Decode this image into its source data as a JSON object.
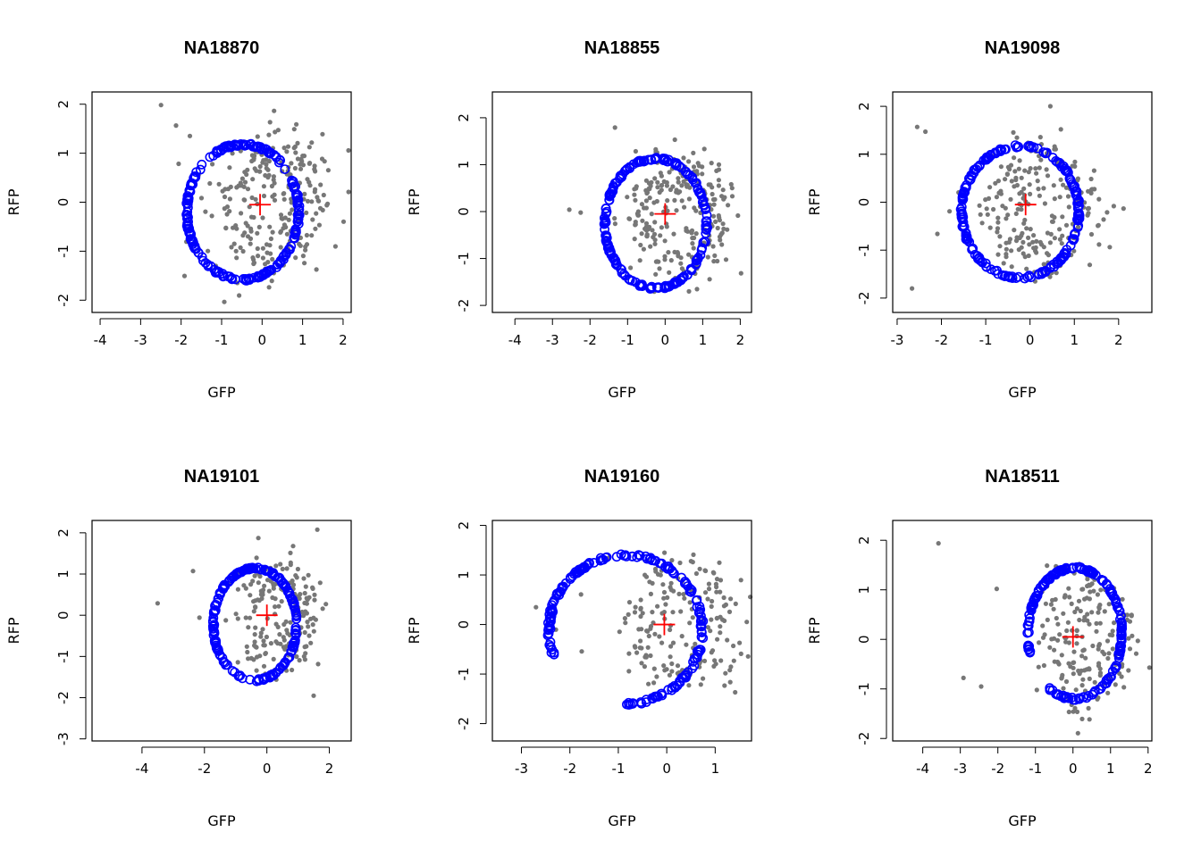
{
  "figure": {
    "panel_titles": [
      "NA18870",
      "NA18855",
      "NA19098",
      "NA19101",
      "NA19160",
      "NA18511"
    ],
    "xlabel": "GFP",
    "ylabel": "RFP"
  },
  "colors": {
    "points": "#777777",
    "fit_circles": "#0000ff",
    "center_cross": "#ff0000",
    "axes": "#000000"
  },
  "chart_data": [
    {
      "type": "scatter",
      "title": "NA18870",
      "xlabel": "GFP",
      "ylabel": "RFP",
      "xlim": [
        -4.2,
        2.2
      ],
      "ylim": [
        -2.25,
        2.25
      ],
      "xticks": [
        -4,
        -3,
        -2,
        -1,
        0,
        1,
        2
      ],
      "yticks": [
        -2,
        -1,
        0,
        1,
        2
      ],
      "center": [
        -0.05,
        -0.05
      ],
      "fit_ellipse": {
        "cx": -0.48,
        "cy": -0.2,
        "rx": 1.38,
        "ry": 1.38,
        "arc_from_deg": 0,
        "arc_to_deg": 360
      },
      "n_circles": 220,
      "n_points": 260,
      "seed": 11
    },
    {
      "type": "scatter",
      "title": "NA18855",
      "xlabel": "GFP",
      "ylabel": "RFP",
      "xlim": [
        -4.6,
        2.3
      ],
      "ylim": [
        -2.15,
        2.55
      ],
      "xticks": [
        -4,
        -3,
        -2,
        -1,
        0,
        1,
        2
      ],
      "yticks": [
        -2,
        -1,
        0,
        1,
        2
      ],
      "center": [
        0.0,
        -0.05
      ],
      "fit_ellipse": {
        "cx": -0.25,
        "cy": -0.25,
        "rx": 1.35,
        "ry": 1.38,
        "arc_from_deg": 0,
        "arc_to_deg": 360
      },
      "n_circles": 200,
      "n_points": 240,
      "seed": 23
    },
    {
      "type": "scatter",
      "title": "NA19098",
      "xlabel": "GFP",
      "ylabel": "RFP",
      "xlim": [
        -3.1,
        2.75
      ],
      "ylim": [
        -2.3,
        2.3
      ],
      "xticks": [
        -3,
        -2,
        -1,
        0,
        1,
        2
      ],
      "yticks": [
        -2,
        -1,
        0,
        1,
        2
      ],
      "center": [
        -0.1,
        -0.05
      ],
      "fit_ellipse": {
        "cx": -0.22,
        "cy": -0.2,
        "rx": 1.32,
        "ry": 1.37,
        "arc_from_deg": 0,
        "arc_to_deg": 360
      },
      "n_circles": 200,
      "n_points": 230,
      "seed": 37
    },
    {
      "type": "scatter",
      "title": "NA19101",
      "xlabel": "GFP",
      "ylabel": "RFP",
      "xlim": [
        -5.6,
        2.7
      ],
      "ylim": [
        -3.05,
        2.3
      ],
      "xticks": [
        -4,
        -2,
        0,
        2
      ],
      "yticks": [
        -3,
        -2,
        -1,
        0,
        1,
        2
      ],
      "center": [
        0.0,
        0.0
      ],
      "fit_ellipse": {
        "cx": -0.38,
        "cy": -0.22,
        "rx": 1.33,
        "ry": 1.36,
        "arc_from_deg": 0,
        "arc_to_deg": 360
      },
      "n_circles": 200,
      "n_points": 190,
      "seed": 53
    },
    {
      "type": "scatter",
      "title": "NA19160",
      "xlabel": "GFP",
      "ylabel": "RFP",
      "xlim": [
        -3.6,
        1.75
      ],
      "ylim": [
        -2.35,
        2.1
      ],
      "xticks": [
        -3,
        -2,
        -1,
        0,
        1
      ],
      "yticks": [
        -2,
        -1,
        0,
        1,
        2
      ],
      "center": [
        -0.05,
        0.0
      ],
      "fit_ellipse": {
        "cx": -0.85,
        "cy": -0.1,
        "rx": 1.58,
        "ry": 1.5,
        "arc_from_deg": -92,
        "arc_to_deg": 200
      },
      "n_circles": 190,
      "n_points": 190,
      "seed": 71
    },
    {
      "type": "scatter",
      "title": "NA18511",
      "xlabel": "GFP",
      "ylabel": "RFP",
      "xlim": [
        -4.8,
        2.1
      ],
      "ylim": [
        -2.05,
        2.4
      ],
      "xticks": [
        -4,
        -3,
        -2,
        -1,
        0,
        1,
        2
      ],
      "yticks": [
        -2,
        -1,
        0,
        1,
        2
      ],
      "center": [
        0.0,
        0.05
      ],
      "fit_ellipse": {
        "cx": 0.05,
        "cy": 0.12,
        "rx": 1.25,
        "ry": 1.32,
        "arc_from_deg": -130,
        "arc_to_deg": 200
      },
      "n_circles": 190,
      "n_points": 190,
      "seed": 89
    }
  ]
}
